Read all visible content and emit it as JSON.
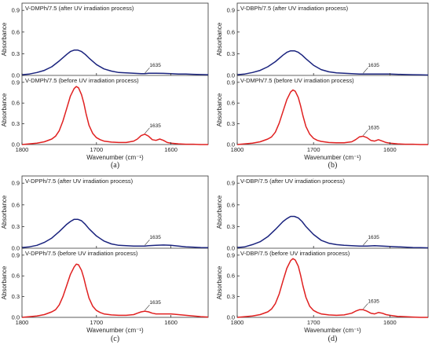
{
  "chart_data": [
    {
      "type": "line",
      "panel": "(a)",
      "xlabel": "Wavenumber (cm⁻¹)",
      "xlim": [
        1800,
        1550
      ],
      "x_ticks": [
        "1800",
        "1700",
        "1600"
      ],
      "subplots": [
        {
          "label": "V-DMPh/7.5 (after UV irradiation process)",
          "color": "#1a237e",
          "ylabel": "Absorbance",
          "ylim": [
            0,
            1.0
          ],
          "y_ticks": [
            "0.0",
            "0.3",
            "0.6",
            "0.9"
          ],
          "annotation": {
            "text": "1635",
            "x": 1635,
            "y": 0.02
          },
          "series": [
            {
              "x": [
                1800,
                1790,
                1780,
                1770,
                1760,
                1750,
                1740,
                1735,
                1730,
                1725,
                1720,
                1715,
                1710,
                1700,
                1690,
                1680,
                1670,
                1660,
                1650,
                1640,
                1635,
                1630,
                1620,
                1610,
                1600,
                1590,
                1580,
                1570,
                1560,
                1550
              ],
              "y": [
                0.01,
                0.02,
                0.04,
                0.07,
                0.12,
                0.2,
                0.29,
                0.33,
                0.35,
                0.35,
                0.33,
                0.29,
                0.24,
                0.15,
                0.09,
                0.06,
                0.04,
                0.035,
                0.03,
                0.025,
                0.025,
                0.03,
                0.03,
                0.028,
                0.025,
                0.02,
                0.018,
                0.015,
                0.012,
                0.01
              ]
            }
          ]
        },
        {
          "label": "V-DMPh/7.5 (before UV irradiation process)",
          "color": "#e02020",
          "ylabel": "Absorbance",
          "ylim": [
            0,
            1.0
          ],
          "y_ticks": [
            "0.0",
            "0.3",
            "0.6",
            "0.9"
          ],
          "annotation": {
            "text": "1635",
            "x": 1635,
            "y": 0.15
          },
          "series": [
            {
              "x": [
                1800,
                1790,
                1780,
                1770,
                1760,
                1755,
                1750,
                1745,
                1740,
                1735,
                1730,
                1727,
                1724,
                1720,
                1717,
                1714,
                1710,
                1705,
                1700,
                1695,
                1690,
                1680,
                1670,
                1660,
                1650,
                1645,
                1640,
                1635,
                1630,
                1625,
                1620,
                1615,
                1610,
                1605,
                1600,
                1590,
                1580,
                1570,
                1560,
                1550
              ],
              "y": [
                0.0,
                0.01,
                0.02,
                0.04,
                0.08,
                0.12,
                0.2,
                0.34,
                0.52,
                0.7,
                0.81,
                0.84,
                0.82,
                0.72,
                0.6,
                0.45,
                0.28,
                0.16,
                0.1,
                0.07,
                0.05,
                0.035,
                0.03,
                0.03,
                0.05,
                0.08,
                0.13,
                0.15,
                0.12,
                0.07,
                0.06,
                0.08,
                0.06,
                0.03,
                0.02,
                0.01,
                0.005,
                0.005,
                0.0,
                0.0
              ]
            }
          ]
        }
      ]
    },
    {
      "type": "line",
      "panel": "(b)",
      "xlabel": "Wavenumber (cm⁻¹)",
      "xlim": [
        1800,
        1550
      ],
      "x_ticks": [
        "1800",
        "1700",
        "1600"
      ],
      "subplots": [
        {
          "label": "V-DBPh/7.5 (after UV irradiation process)",
          "color": "#1a237e",
          "ylabel": "Absorbance",
          "ylim": [
            0,
            1.0
          ],
          "y_ticks": [
            "0.0",
            "0.3",
            "0.6",
            "0.9"
          ],
          "annotation": {
            "text": "1635",
            "x": 1635,
            "y": 0.02
          },
          "series": [
            {
              "x": [
                1800,
                1790,
                1780,
                1770,
                1760,
                1750,
                1740,
                1735,
                1730,
                1725,
                1720,
                1715,
                1710,
                1700,
                1690,
                1680,
                1670,
                1660,
                1650,
                1640,
                1635,
                1630,
                1620,
                1610,
                1600,
                1590,
                1580,
                1570,
                1560,
                1550
              ],
              "y": [
                0.01,
                0.02,
                0.04,
                0.07,
                0.12,
                0.19,
                0.28,
                0.32,
                0.34,
                0.34,
                0.32,
                0.28,
                0.23,
                0.14,
                0.08,
                0.05,
                0.035,
                0.03,
                0.025,
                0.02,
                0.02,
                0.02,
                0.02,
                0.02,
                0.018,
                0.015,
                0.012,
                0.01,
                0.008,
                0.005
              ]
            }
          ]
        },
        {
          "label": "V-DMPh/7.5 (before UV irradiation process)",
          "color": "#e02020",
          "ylabel": "Absorbance",
          "ylim": [
            0,
            1.0
          ],
          "y_ticks": [
            "0.0",
            "0.3",
            "0.6",
            "0.9"
          ],
          "annotation": {
            "text": "1635",
            "x": 1635,
            "y": 0.12
          },
          "series": [
            {
              "x": [
                1800,
                1790,
                1780,
                1770,
                1760,
                1755,
                1750,
                1745,
                1740,
                1735,
                1730,
                1727,
                1724,
                1720,
                1717,
                1714,
                1710,
                1705,
                1700,
                1695,
                1690,
                1680,
                1670,
                1660,
                1650,
                1645,
                1640,
                1635,
                1630,
                1625,
                1620,
                1615,
                1610,
                1605,
                1600,
                1590,
                1580,
                1570,
                1560,
                1550
              ],
              "y": [
                0.0,
                0.01,
                0.02,
                0.04,
                0.08,
                0.11,
                0.18,
                0.31,
                0.48,
                0.65,
                0.76,
                0.79,
                0.77,
                0.68,
                0.56,
                0.42,
                0.26,
                0.15,
                0.09,
                0.06,
                0.045,
                0.03,
                0.025,
                0.025,
                0.04,
                0.07,
                0.11,
                0.12,
                0.1,
                0.06,
                0.05,
                0.07,
                0.05,
                0.03,
                0.02,
                0.01,
                0.005,
                0.005,
                0.0,
                0.0
              ]
            }
          ]
        }
      ]
    },
    {
      "type": "line",
      "panel": "(c)",
      "xlabel": "Wavenumber (cm⁻¹)",
      "xlim": [
        1800,
        1550
      ],
      "x_ticks": [
        "1800",
        "1700",
        "1600"
      ],
      "subplots": [
        {
          "label": "V-DPPh/7.5 (after UV irradiation process)",
          "color": "#1a237e",
          "ylabel": "Absorbance",
          "ylim": [
            0,
            1.0
          ],
          "y_ticks": [
            "0.0",
            "0.3",
            "0.6",
            "0.9"
          ],
          "annotation": {
            "text": "1635",
            "x": 1635,
            "y": 0.03
          },
          "series": [
            {
              "x": [
                1800,
                1790,
                1780,
                1770,
                1760,
                1750,
                1740,
                1735,
                1730,
                1725,
                1720,
                1715,
                1710,
                1700,
                1690,
                1680,
                1670,
                1660,
                1650,
                1640,
                1635,
                1630,
                1620,
                1610,
                1600,
                1590,
                1580,
                1570,
                1560,
                1550
              ],
              "y": [
                0.01,
                0.02,
                0.04,
                0.08,
                0.14,
                0.23,
                0.33,
                0.37,
                0.4,
                0.4,
                0.38,
                0.33,
                0.27,
                0.17,
                0.1,
                0.06,
                0.04,
                0.035,
                0.03,
                0.03,
                0.03,
                0.035,
                0.04,
                0.045,
                0.04,
                0.03,
                0.02,
                0.015,
                0.01,
                0.008
              ]
            }
          ]
        },
        {
          "label": "V-DPPh/7.5 (before UV irradiation process)",
          "color": "#e02020",
          "ylabel": "Absorbance",
          "ylim": [
            0,
            1.0
          ],
          "y_ticks": [
            "0.0",
            "0.3",
            "0.6",
            "0.9"
          ],
          "annotation": {
            "text": "1635",
            "x": 1635,
            "y": 0.09
          },
          "series": [
            {
              "x": [
                1800,
                1790,
                1780,
                1770,
                1760,
                1755,
                1750,
                1745,
                1740,
                1735,
                1730,
                1727,
                1724,
                1720,
                1717,
                1714,
                1710,
                1705,
                1700,
                1695,
                1690,
                1680,
                1670,
                1660,
                1650,
                1645,
                1640,
                1635,
                1630,
                1625,
                1620,
                1615,
                1610,
                1605,
                1600,
                1590,
                1580,
                1570,
                1560,
                1550
              ],
              "y": [
                0.0,
                0.01,
                0.02,
                0.04,
                0.08,
                0.11,
                0.18,
                0.3,
                0.46,
                0.62,
                0.73,
                0.77,
                0.76,
                0.68,
                0.57,
                0.44,
                0.28,
                0.16,
                0.1,
                0.07,
                0.05,
                0.035,
                0.03,
                0.03,
                0.04,
                0.06,
                0.08,
                0.09,
                0.08,
                0.06,
                0.05,
                0.05,
                0.05,
                0.05,
                0.05,
                0.04,
                0.03,
                0.02,
                0.01,
                0.005
              ]
            }
          ]
        }
      ]
    },
    {
      "type": "line",
      "panel": "(d)",
      "xlabel": "Wavenumber (cm⁻¹)",
      "xlim": [
        1800,
        1550
      ],
      "x_ticks": [
        "1800",
        "1700",
        "1600"
      ],
      "subplots": [
        {
          "label": "V-DBP/7.5 (after UV irradiation process)",
          "color": "#1a237e",
          "ylabel": "Absorbance",
          "ylim": [
            0,
            1.0
          ],
          "y_ticks": [
            "0.0",
            "0.3",
            "0.6",
            "0.9"
          ],
          "annotation": {
            "text": "1635",
            "x": 1635,
            "y": 0.03
          },
          "series": [
            {
              "x": [
                1800,
                1790,
                1780,
                1770,
                1760,
                1750,
                1740,
                1735,
                1730,
                1725,
                1720,
                1715,
                1710,
                1700,
                1690,
                1680,
                1670,
                1660,
                1650,
                1640,
                1635,
                1630,
                1620,
                1610,
                1600,
                1590,
                1580,
                1570,
                1560,
                1550
              ],
              "y": [
                0.01,
                0.02,
                0.05,
                0.09,
                0.16,
                0.26,
                0.37,
                0.41,
                0.44,
                0.44,
                0.42,
                0.37,
                0.3,
                0.19,
                0.11,
                0.07,
                0.05,
                0.04,
                0.035,
                0.03,
                0.03,
                0.03,
                0.035,
                0.03,
                0.025,
                0.02,
                0.015,
                0.01,
                0.008,
                0.005
              ]
            }
          ]
        },
        {
          "label": "V-DBP/7.5 (before UV irradiation process)",
          "color": "#e02020",
          "ylabel": "Absorbance",
          "ylim": [
            0,
            1.0
          ],
          "y_ticks": [
            "0.0",
            "0.3",
            "0.6",
            "0.9"
          ],
          "annotation": {
            "text": "1635",
            "x": 1635,
            "y": 0.11
          },
          "series": [
            {
              "x": [
                1800,
                1790,
                1780,
                1770,
                1760,
                1755,
                1750,
                1745,
                1740,
                1735,
                1730,
                1727,
                1724,
                1720,
                1717,
                1714,
                1710,
                1705,
                1700,
                1695,
                1690,
                1680,
                1670,
                1660,
                1650,
                1645,
                1640,
                1635,
                1630,
                1625,
                1620,
                1615,
                1610,
                1605,
                1600,
                1590,
                1580,
                1570,
                1560,
                1550
              ],
              "y": [
                0.0,
                0.01,
                0.02,
                0.04,
                0.08,
                0.12,
                0.2,
                0.34,
                0.53,
                0.71,
                0.82,
                0.85,
                0.83,
                0.74,
                0.61,
                0.46,
                0.29,
                0.16,
                0.1,
                0.07,
                0.05,
                0.035,
                0.03,
                0.035,
                0.06,
                0.09,
                0.11,
                0.11,
                0.09,
                0.06,
                0.05,
                0.07,
                0.06,
                0.04,
                0.03,
                0.015,
                0.01,
                0.005,
                0.0,
                0.0
              ]
            }
          ]
        }
      ]
    }
  ]
}
